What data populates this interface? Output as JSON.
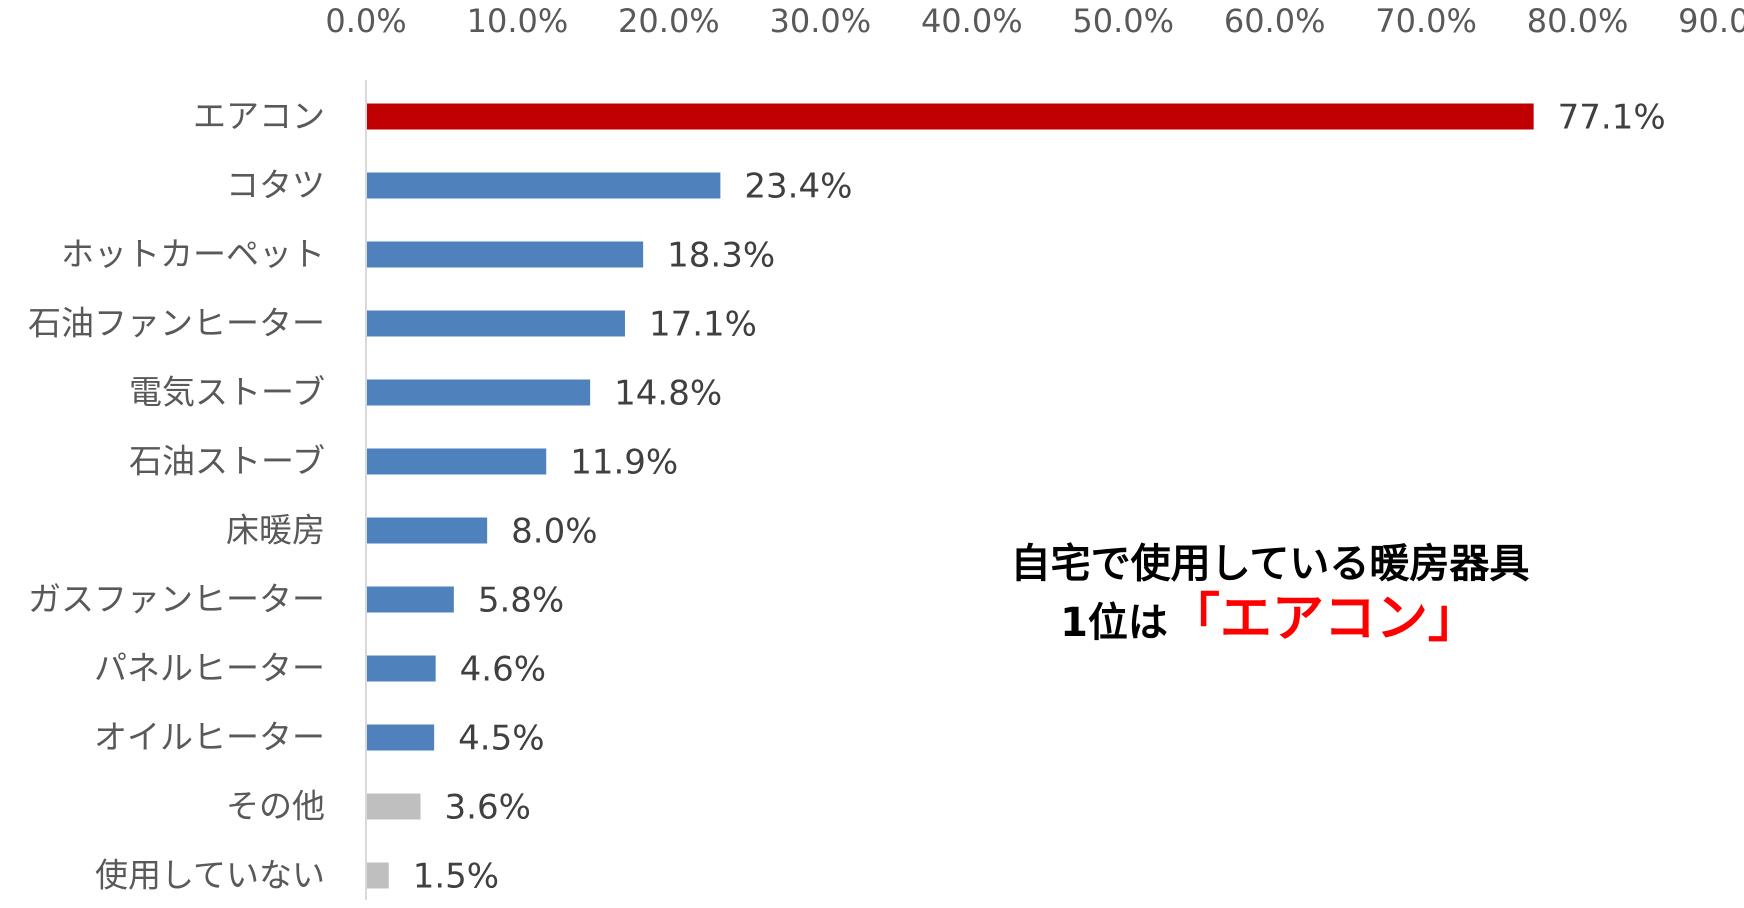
{
  "chart_data": {
    "type": "bar",
    "orientation": "horizontal",
    "categories": [
      "エアコン",
      "コタツ",
      "ホットカーペット",
      "石油ファンヒーター",
      "電気ストーブ",
      "石油ストーブ",
      "床暖房",
      "ガスファンヒーター",
      "パネルヒーター",
      "オイルヒーター",
      "その他",
      "使用していない"
    ],
    "values": [
      77.1,
      23.4,
      18.3,
      17.1,
      14.8,
      11.9,
      8.0,
      5.8,
      4.6,
      4.5,
      3.6,
      1.5
    ],
    "data_labels": [
      "77.1%",
      "23.4%",
      "18.3%",
      "17.1%",
      "14.8%",
      "11.9%",
      "8.0%",
      "5.8%",
      "4.6%",
      "4.5%",
      "3.6%",
      "1.5%"
    ],
    "bar_colors": [
      "#c00000",
      "#4f81bd",
      "#4f81bd",
      "#4f81bd",
      "#4f81bd",
      "#4f81bd",
      "#4f81bd",
      "#4f81bd",
      "#4f81bd",
      "#4f81bd",
      "#bfbfbf",
      "#bfbfbf"
    ],
    "xlim": [
      0,
      90
    ],
    "xticks": [
      0,
      10,
      20,
      30,
      40,
      50,
      60,
      70,
      80,
      90
    ],
    "xtick_labels": [
      "0.0%",
      "10.0%",
      "20.0%",
      "30.0%",
      "40.0%",
      "50.0%",
      "60.0%",
      "70.0%",
      "80.0%",
      "90.0%"
    ],
    "x_axis_position": "top",
    "grid": false,
    "legend": "none",
    "title": "",
    "xlabel": "",
    "ylabel": ""
  },
  "annotation": {
    "line1": "自宅で使用している暖房器具",
    "line2_prefix": "1位は",
    "line2_highlight": "「エアコン」",
    "highlight_color": "#ff0000"
  }
}
